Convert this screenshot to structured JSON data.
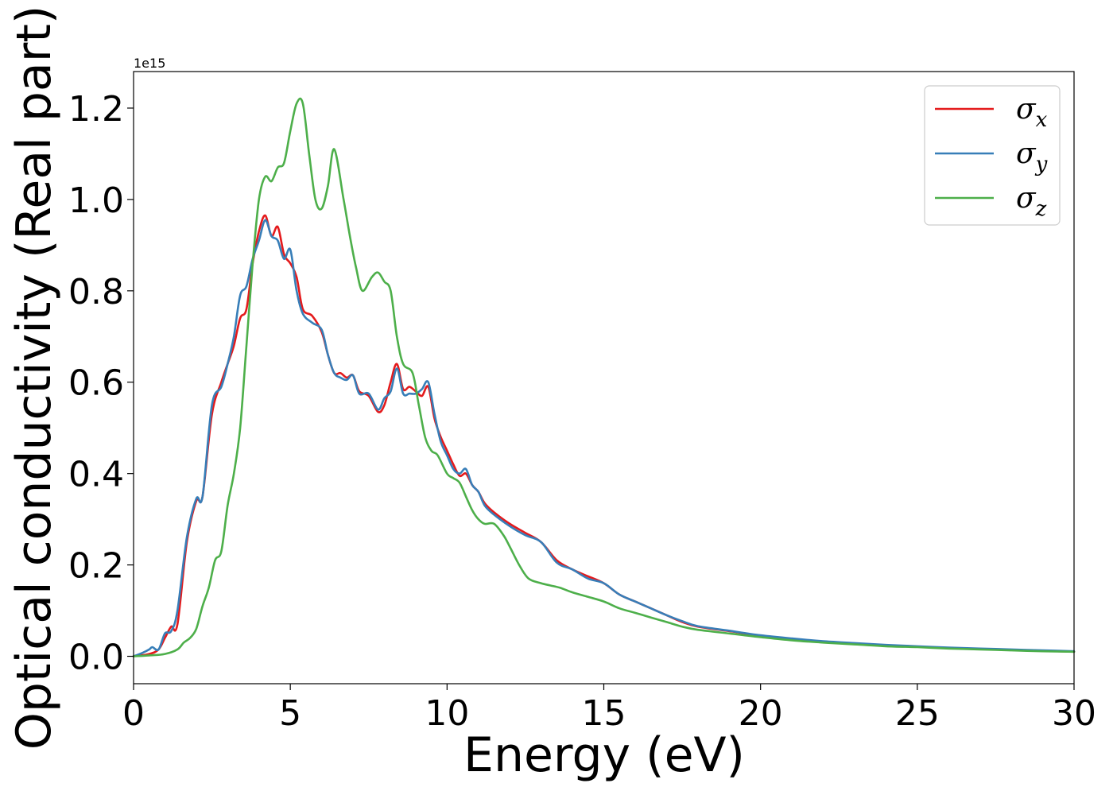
{
  "chart_data": {
    "type": "line",
    "xlabel": "Energy (eV)",
    "ylabel": "Optical conductivity (Real part)",
    "y_offset_label": "1e15",
    "xlim": [
      0,
      30
    ],
    "ylim": [
      -0.06,
      1.28
    ],
    "xticks": [
      0,
      5,
      10,
      15,
      20,
      25,
      30
    ],
    "xtick_labels": [
      "0",
      "5",
      "10",
      "15",
      "20",
      "25",
      "30"
    ],
    "yticks": [
      0.0,
      0.2,
      0.4,
      0.6,
      0.8,
      1.0,
      1.2
    ],
    "ytick_labels": [
      "0.0",
      "0.2",
      "0.4",
      "0.6",
      "0.8",
      "1.0",
      "1.2"
    ],
    "grid": false,
    "legend_position": "top-right",
    "series": [
      {
        "name": "σx",
        "base": "σ",
        "sub": "x",
        "color": "#e41a1c",
        "x": [
          0,
          0.5,
          0.8,
          1.0,
          1.2,
          1.4,
          1.7,
          2.0,
          2.2,
          2.5,
          2.8,
          3.0,
          3.2,
          3.4,
          3.6,
          3.8,
          4.0,
          4.2,
          4.4,
          4.6,
          4.8,
          5.0,
          5.2,
          5.4,
          5.7,
          6.0,
          6.2,
          6.4,
          6.6,
          6.8,
          7.0,
          7.2,
          7.5,
          7.8,
          8.0,
          8.2,
          8.4,
          8.6,
          8.8,
          9.0,
          9.2,
          9.4,
          9.6,
          9.8,
          10.0,
          10.2,
          10.4,
          10.6,
          10.8,
          11.0,
          11.2,
          11.5,
          12.0,
          12.5,
          13.0,
          13.5,
          14.0,
          14.5,
          15.0,
          15.5,
          16.0,
          16.5,
          17.0,
          17.5,
          18.0,
          19.0,
          20.0,
          21.0,
          22.0,
          23.0,
          24.0,
          25.0,
          26.0,
          27.0,
          28.0,
          29.0,
          30.0
        ],
        "y": [
          0.0,
          0.005,
          0.015,
          0.04,
          0.065,
          0.07,
          0.25,
          0.34,
          0.35,
          0.53,
          0.6,
          0.64,
          0.68,
          0.74,
          0.76,
          0.86,
          0.93,
          0.965,
          0.92,
          0.94,
          0.88,
          0.86,
          0.83,
          0.76,
          0.745,
          0.71,
          0.66,
          0.62,
          0.62,
          0.61,
          0.615,
          0.58,
          0.57,
          0.535,
          0.55,
          0.6,
          0.64,
          0.585,
          0.59,
          0.58,
          0.57,
          0.59,
          0.52,
          0.48,
          0.45,
          0.42,
          0.395,
          0.4,
          0.375,
          0.36,
          0.335,
          0.315,
          0.29,
          0.27,
          0.25,
          0.21,
          0.19,
          0.175,
          0.16,
          0.135,
          0.12,
          0.105,
          0.09,
          0.075,
          0.065,
          0.055,
          0.045,
          0.038,
          0.032,
          0.028,
          0.024,
          0.021,
          0.018,
          0.016,
          0.014,
          0.012,
          0.01
        ]
      },
      {
        "name": "σy",
        "base": "σ",
        "sub": "y",
        "color": "#377eb8",
        "x": [
          0,
          0.3,
          0.5,
          0.6,
          0.8,
          1.0,
          1.2,
          1.4,
          1.7,
          2.0,
          2.2,
          2.5,
          2.8,
          3.0,
          3.2,
          3.4,
          3.6,
          3.8,
          4.0,
          4.2,
          4.4,
          4.6,
          4.8,
          5.0,
          5.2,
          5.4,
          5.7,
          6.0,
          6.2,
          6.4,
          6.6,
          6.8,
          7.0,
          7.2,
          7.5,
          7.8,
          8.0,
          8.2,
          8.4,
          8.6,
          8.8,
          9.0,
          9.2,
          9.4,
          9.6,
          9.8,
          10.0,
          10.2,
          10.4,
          10.6,
          10.8,
          11.0,
          11.2,
          11.5,
          12.0,
          12.5,
          13.0,
          13.5,
          14.0,
          14.5,
          15.0,
          15.5,
          16.0,
          16.5,
          17.0,
          17.5,
          18.0,
          19.0,
          20.0,
          21.0,
          22.0,
          23.0,
          24.0,
          25.0,
          26.0,
          27.0,
          28.0,
          29.0,
          30.0
        ],
        "y": [
          0.0,
          0.008,
          0.015,
          0.02,
          0.015,
          0.05,
          0.055,
          0.1,
          0.26,
          0.345,
          0.35,
          0.55,
          0.59,
          0.64,
          0.7,
          0.79,
          0.81,
          0.87,
          0.91,
          0.955,
          0.92,
          0.91,
          0.87,
          0.89,
          0.8,
          0.75,
          0.73,
          0.715,
          0.66,
          0.62,
          0.61,
          0.605,
          0.615,
          0.575,
          0.575,
          0.54,
          0.565,
          0.58,
          0.63,
          0.575,
          0.575,
          0.575,
          0.585,
          0.6,
          0.53,
          0.47,
          0.44,
          0.41,
          0.4,
          0.41,
          0.375,
          0.36,
          0.33,
          0.31,
          0.285,
          0.265,
          0.25,
          0.205,
          0.19,
          0.17,
          0.16,
          0.135,
          0.12,
          0.105,
          0.09,
          0.077,
          0.066,
          0.056,
          0.046,
          0.039,
          0.033,
          0.029,
          0.025,
          0.022,
          0.019,
          0.017,
          0.015,
          0.013,
          0.011
        ]
      },
      {
        "name": "σz",
        "base": "σ",
        "sub": "z",
        "color": "#4daf4a",
        "x": [
          0,
          0.5,
          1.0,
          1.4,
          1.6,
          1.8,
          2.0,
          2.2,
          2.4,
          2.6,
          2.8,
          3.0,
          3.2,
          3.4,
          3.6,
          3.8,
          4.0,
          4.2,
          4.4,
          4.6,
          4.8,
          5.0,
          5.2,
          5.4,
          5.6,
          5.8,
          6.0,
          6.2,
          6.4,
          6.7,
          6.9,
          7.1,
          7.3,
          7.6,
          7.8,
          8.0,
          8.2,
          8.4,
          8.6,
          8.9,
          9.1,
          9.3,
          9.5,
          9.7,
          10.0,
          10.2,
          10.4,
          10.6,
          10.8,
          11.0,
          11.2,
          11.5,
          11.8,
          12.0,
          12.3,
          12.6,
          13.0,
          13.3,
          13.6,
          14.0,
          14.5,
          15.0,
          15.5,
          16.0,
          16.5,
          17.0,
          17.5,
          18.0,
          19.0,
          20.0,
          21.0,
          22.0,
          23.0,
          24.0,
          25.0,
          26.0,
          27.0,
          28.0,
          29.0,
          30.0
        ],
        "y": [
          0.0,
          0.002,
          0.005,
          0.015,
          0.03,
          0.04,
          0.06,
          0.11,
          0.15,
          0.21,
          0.23,
          0.33,
          0.4,
          0.5,
          0.68,
          0.86,
          1.0,
          1.05,
          1.04,
          1.07,
          1.08,
          1.15,
          1.21,
          1.21,
          1.1,
          1.0,
          0.98,
          1.03,
          1.11,
          1.0,
          0.92,
          0.85,
          0.8,
          0.83,
          0.84,
          0.82,
          0.8,
          0.7,
          0.64,
          0.62,
          0.55,
          0.48,
          0.45,
          0.44,
          0.4,
          0.39,
          0.38,
          0.35,
          0.32,
          0.3,
          0.29,
          0.29,
          0.265,
          0.24,
          0.2,
          0.17,
          0.16,
          0.155,
          0.15,
          0.14,
          0.13,
          0.12,
          0.105,
          0.095,
          0.085,
          0.075,
          0.065,
          0.058,
          0.05,
          0.042,
          0.035,
          0.03,
          0.026,
          0.022,
          0.02,
          0.017,
          0.015,
          0.013,
          0.011,
          0.01
        ]
      }
    ]
  }
}
